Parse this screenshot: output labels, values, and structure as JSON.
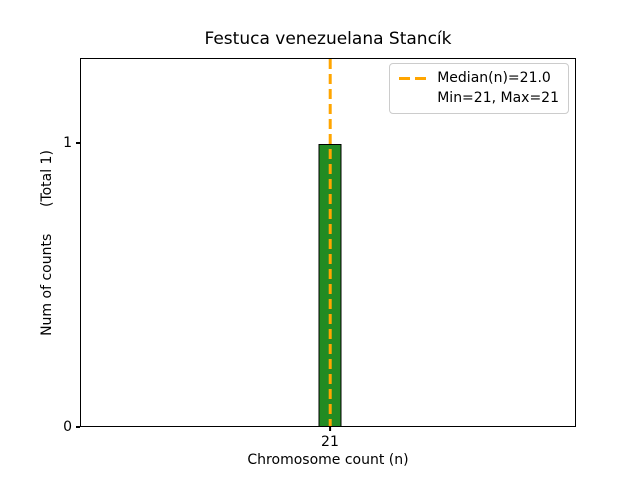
{
  "chart_data": {
    "type": "bar",
    "title": "Festuca venezuelana Stancík",
    "xlabel": "Chromosome count (n)",
    "ylabel": "Num of counts      (Total 1)",
    "categories": [
      21
    ],
    "values": [
      1
    ],
    "xticks": [
      "21"
    ],
    "yticks": [
      "0",
      "1"
    ],
    "ylim": [
      0,
      1.3
    ],
    "grid": false,
    "bar_color": "#228B22",
    "bar_edge_color": "#000000",
    "median_line": {
      "value": 21.0,
      "color": "#FFA500",
      "style": "dashed"
    },
    "legend": {
      "position": "upper right",
      "entries": [
        {
          "symbol": "dashed-line",
          "color": "#FFA500",
          "label": "Median(n)=21.0"
        },
        {
          "symbol": "none",
          "color": "",
          "label": "Min=21, Max=21"
        }
      ]
    },
    "stats": {
      "median": 21.0,
      "min": 21,
      "max": 21,
      "total": 1
    }
  }
}
